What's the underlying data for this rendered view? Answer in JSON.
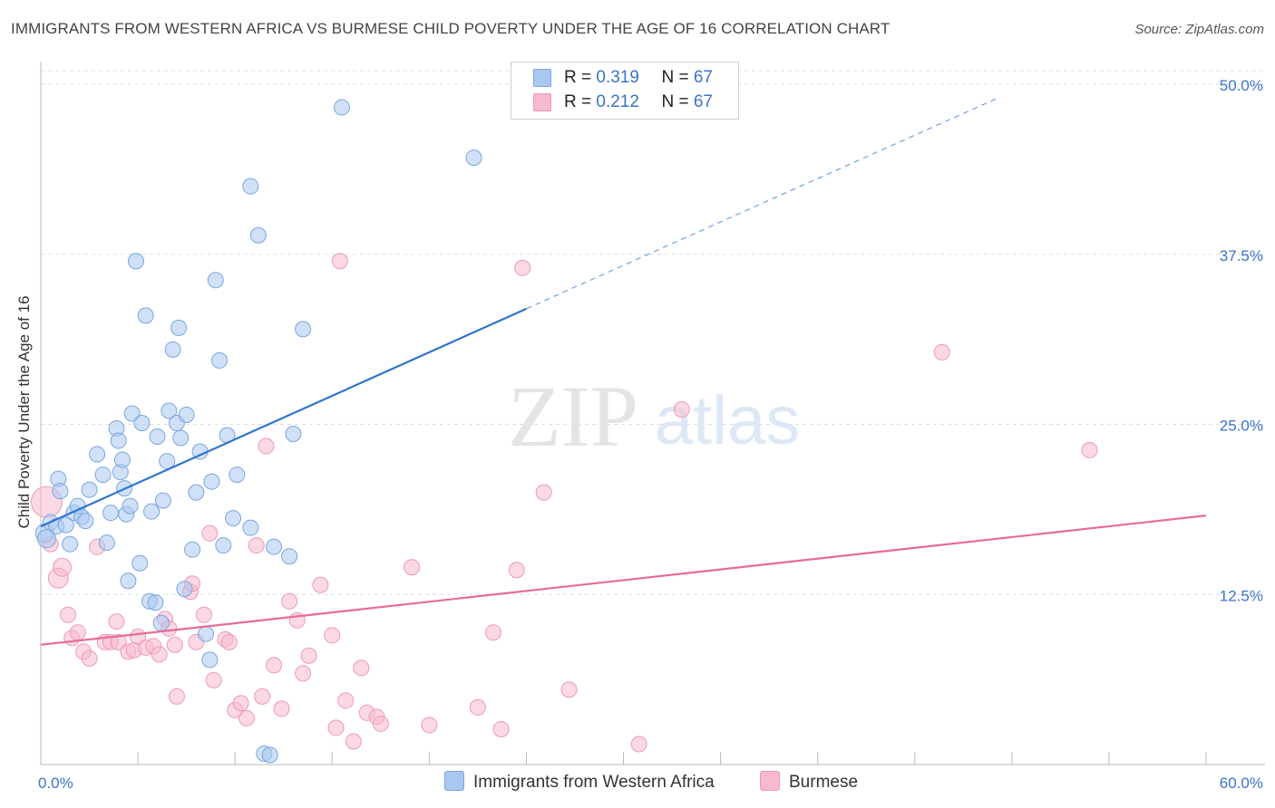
{
  "title": "IMMIGRANTS FROM WESTERN AFRICA VS BURMESE CHILD POVERTY UNDER THE AGE OF 16 CORRELATION CHART",
  "source": "Source: ZipAtlas.com",
  "watermark": {
    "zip": "ZIP",
    "atlas": "atlas"
  },
  "stats": [
    {
      "r_label": "R = ",
      "r_value": "0.319",
      "n_label": "N = ",
      "n_value": "67",
      "color": "#a9c8f0"
    },
    {
      "r_label": "R = ",
      "r_value": "0.212",
      "n_label": "N = ",
      "n_value": "67",
      "color": "#f7b9cd"
    }
  ],
  "legend": [
    {
      "label": "Immigrants from Western Africa",
      "color": "#a9c8f0"
    },
    {
      "label": "Burmese",
      "color": "#f7b9cd"
    }
  ],
  "colors": {
    "blue_point_fill": "#a9c8f0",
    "blue_point_stroke": "#7aa6df",
    "blue_line": "#2e74d0",
    "pink_point_fill": "#f7b9cd",
    "pink_point_stroke": "#ee98b5",
    "pink_line": "#e86b97",
    "tick_label": "#3a74c9",
    "grid": "#dddddd"
  },
  "chart_data": {
    "type": "scatter",
    "title": "IMMIGRANTS FROM WESTERN AFRICA VS BURMESE CHILD POVERTY UNDER THE AGE OF 16 CORRELATION CHART",
    "xlabel": "",
    "ylabel": "Child Poverty Under the Age of 16",
    "xlim": [
      0,
      60
    ],
    "ylim": [
      0,
      51
    ],
    "x_tick_labels": [
      "0.0%",
      "60.0%"
    ],
    "y_ticks": [
      12.5,
      25.0,
      37.5,
      50.0
    ],
    "y_tick_labels": [
      "12.5%",
      "25.0%",
      "37.5%",
      "50.0%"
    ],
    "grid": "horizontal dashed",
    "legend_position": "bottom",
    "series": [
      {
        "name": "Immigrants from Western Africa",
        "color": "#a9c8f0",
        "trend": {
          "x0": 0,
          "y0": 17.5,
          "x1": 25.0,
          "y1": 33.5,
          "dashed_to_x": 49.3,
          "dashed_to_y": 49.0
        },
        "points": [
          [
            0.2,
            17.0
          ],
          [
            0.3,
            16.6
          ],
          [
            0.5,
            17.8
          ],
          [
            0.8,
            17.5
          ],
          [
            0.9,
            21.0
          ],
          [
            1.0,
            20.1
          ],
          [
            1.3,
            17.6
          ],
          [
            1.5,
            16.2
          ],
          [
            1.7,
            18.5
          ],
          [
            1.9,
            19.0
          ],
          [
            2.1,
            18.2
          ],
          [
            2.3,
            17.9
          ],
          [
            2.5,
            20.2
          ],
          [
            2.9,
            22.8
          ],
          [
            3.2,
            21.3
          ],
          [
            3.4,
            16.3
          ],
          [
            3.6,
            18.5
          ],
          [
            3.9,
            24.7
          ],
          [
            4.0,
            23.8
          ],
          [
            4.1,
            21.5
          ],
          [
            4.2,
            22.4
          ],
          [
            4.3,
            20.3
          ],
          [
            4.4,
            18.4
          ],
          [
            4.6,
            19.0
          ],
          [
            4.5,
            13.5
          ],
          [
            4.7,
            25.8
          ],
          [
            4.9,
            37.0
          ],
          [
            5.2,
            25.1
          ],
          [
            5.1,
            14.8
          ],
          [
            5.4,
            33.0
          ],
          [
            5.6,
            12.0
          ],
          [
            5.7,
            18.6
          ],
          [
            5.9,
            11.9
          ],
          [
            6.0,
            24.1
          ],
          [
            6.2,
            10.4
          ],
          [
            6.3,
            19.4
          ],
          [
            6.5,
            22.3
          ],
          [
            6.6,
            26.0
          ],
          [
            6.8,
            30.5
          ],
          [
            7.0,
            25.1
          ],
          [
            7.1,
            32.1
          ],
          [
            7.2,
            24.0
          ],
          [
            7.4,
            12.9
          ],
          [
            7.5,
            25.7
          ],
          [
            7.8,
            15.8
          ],
          [
            8.0,
            20.0
          ],
          [
            8.2,
            23.0
          ],
          [
            8.5,
            9.6
          ],
          [
            8.7,
            7.7
          ],
          [
            8.8,
            20.8
          ],
          [
            9.0,
            35.6
          ],
          [
            9.2,
            29.7
          ],
          [
            9.4,
            16.1
          ],
          [
            9.6,
            24.2
          ],
          [
            9.9,
            18.1
          ],
          [
            10.1,
            21.3
          ],
          [
            10.8,
            17.4
          ],
          [
            10.8,
            42.5
          ],
          [
            11.2,
            38.9
          ],
          [
            11.5,
            0.8
          ],
          [
            11.8,
            0.7
          ],
          [
            12.0,
            16.0
          ],
          [
            12.8,
            15.3
          ],
          [
            13.0,
            24.3
          ],
          [
            13.5,
            32.0
          ],
          [
            15.5,
            48.3
          ],
          [
            22.3,
            44.6
          ]
        ]
      },
      {
        "name": "Burmese",
        "color": "#f7b9cd",
        "trend": {
          "x0": 0,
          "y0": 8.8,
          "x1": 60,
          "y1": 18.3
        },
        "points": [
          [
            0.3,
            19.3
          ],
          [
            0.5,
            16.2
          ],
          [
            0.9,
            13.7
          ],
          [
            1.1,
            14.5
          ],
          [
            1.4,
            11.0
          ],
          [
            1.6,
            9.3
          ],
          [
            1.9,
            9.7
          ],
          [
            2.2,
            8.3
          ],
          [
            2.5,
            7.8
          ],
          [
            2.9,
            16.0
          ],
          [
            3.3,
            9.0
          ],
          [
            3.6,
            9.0
          ],
          [
            3.9,
            10.5
          ],
          [
            4.0,
            9.0
          ],
          [
            4.5,
            8.3
          ],
          [
            4.8,
            8.4
          ],
          [
            5.0,
            9.4
          ],
          [
            5.4,
            8.6
          ],
          [
            5.8,
            8.7
          ],
          [
            6.1,
            8.1
          ],
          [
            6.4,
            10.7
          ],
          [
            6.6,
            10.0
          ],
          [
            6.9,
            8.8
          ],
          [
            7.0,
            5.0
          ],
          [
            7.7,
            12.7
          ],
          [
            7.8,
            13.3
          ],
          [
            8.0,
            9.0
          ],
          [
            8.4,
            11.0
          ],
          [
            8.7,
            17.0
          ],
          [
            8.9,
            6.2
          ],
          [
            9.5,
            9.2
          ],
          [
            9.7,
            9.0
          ],
          [
            10.0,
            4.0
          ],
          [
            10.3,
            4.5
          ],
          [
            10.6,
            3.4
          ],
          [
            11.1,
            16.1
          ],
          [
            11.4,
            5.0
          ],
          [
            11.6,
            23.4
          ],
          [
            12.0,
            7.3
          ],
          [
            12.4,
            4.1
          ],
          [
            12.8,
            12.0
          ],
          [
            13.2,
            10.6
          ],
          [
            13.5,
            6.7
          ],
          [
            13.8,
            8.0
          ],
          [
            14.4,
            13.2
          ],
          [
            15.0,
            9.5
          ],
          [
            15.2,
            2.7
          ],
          [
            15.4,
            37.0
          ],
          [
            15.7,
            4.7
          ],
          [
            16.1,
            1.7
          ],
          [
            16.5,
            7.1
          ],
          [
            16.8,
            3.8
          ],
          [
            17.3,
            3.5
          ],
          [
            17.5,
            3.0
          ],
          [
            19.1,
            14.5
          ],
          [
            20.0,
            2.9
          ],
          [
            22.5,
            4.2
          ],
          [
            23.3,
            9.7
          ],
          [
            23.7,
            2.6
          ],
          [
            24.5,
            14.3
          ],
          [
            24.8,
            36.5
          ],
          [
            25.9,
            20.0
          ],
          [
            27.2,
            5.5
          ],
          [
            30.8,
            1.5
          ],
          [
            33.0,
            26.1
          ],
          [
            46.4,
            30.3
          ],
          [
            54.0,
            23.1
          ]
        ]
      }
    ]
  }
}
